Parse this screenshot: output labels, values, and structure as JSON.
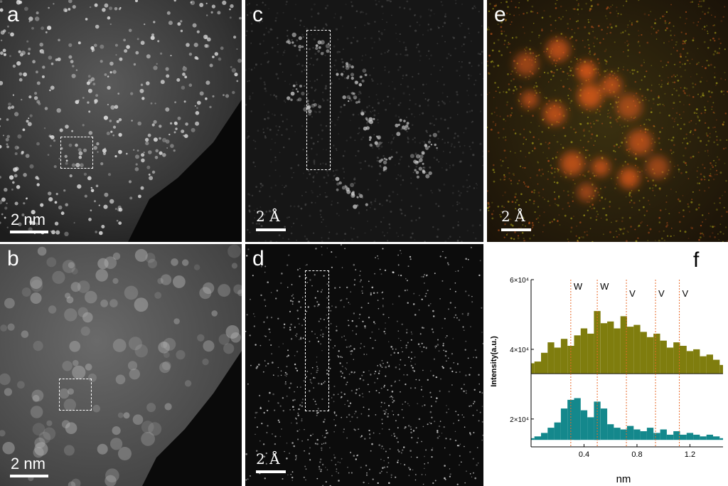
{
  "panels": {
    "a": {
      "label": "a",
      "scale": "2 nm"
    },
    "b": {
      "label": "b",
      "scale": "2 nm"
    },
    "c": {
      "label": "c",
      "scale": "2 Å"
    },
    "d": {
      "label": "d",
      "scale": "2 Å"
    },
    "e": {
      "label": "e",
      "scale": "2 Å"
    },
    "f": {
      "label": "f"
    }
  },
  "colors": {
    "series_top": "#7f7d0e",
    "series_bottom": "#14888c",
    "marker_line": "#e86a2a"
  },
  "chart_data": {
    "type": "area",
    "title": "",
    "xlabel": "nm",
    "ylabel": "Intensity(a.u.)",
    "xlim": [
      0.0,
      1.45
    ],
    "ylim": [
      12000,
      60000
    ],
    "x_ticks": [
      0.4,
      0.8,
      1.2
    ],
    "x_tick_labels": [
      "0.4",
      "0.8",
      "1.2"
    ],
    "y_ticks": [
      20000,
      40000,
      60000
    ],
    "y_tick_labels": [
      "2×10⁴",
      "4×10⁴",
      "6×10⁴"
    ],
    "grid": false,
    "annotations": [
      {
        "text": "W",
        "x": 0.3
      },
      {
        "text": "W",
        "x": 0.5
      },
      {
        "text": "V",
        "x": 0.72
      },
      {
        "text": "V",
        "x": 0.94
      },
      {
        "text": "V",
        "x": 1.12
      }
    ],
    "series": [
      {
        "baseline": 33000,
        "x": [
          0.0,
          0.05,
          0.1,
          0.15,
          0.2,
          0.25,
          0.3,
          0.35,
          0.4,
          0.45,
          0.5,
          0.55,
          0.6,
          0.65,
          0.7,
          0.75,
          0.8,
          0.85,
          0.9,
          0.95,
          1.0,
          1.05,
          1.1,
          1.15,
          1.2,
          1.25,
          1.3,
          1.35,
          1.4,
          1.45
        ],
        "values": [
          36000,
          36500,
          39000,
          42000,
          40500,
          43000,
          41000,
          44000,
          46000,
          44500,
          51000,
          47500,
          48000,
          46000,
          49500,
          46500,
          47000,
          45000,
          43500,
          44500,
          42500,
          40500,
          42000,
          41000,
          39500,
          40000,
          38000,
          38500,
          37000,
          35500
        ]
      },
      {
        "baseline": 14000,
        "x": [
          0.0,
          0.05,
          0.1,
          0.15,
          0.2,
          0.25,
          0.3,
          0.35,
          0.4,
          0.45,
          0.5,
          0.55,
          0.6,
          0.65,
          0.7,
          0.75,
          0.8,
          0.85,
          0.9,
          0.95,
          1.0,
          1.05,
          1.1,
          1.15,
          1.2,
          1.25,
          1.3,
          1.35,
          1.4,
          1.45
        ],
        "values": [
          14500,
          15000,
          16000,
          17500,
          19000,
          23000,
          25500,
          26000,
          22500,
          20500,
          25000,
          23000,
          18500,
          17500,
          17000,
          18000,
          17000,
          16500,
          17500,
          16000,
          17000,
          15500,
          16500,
          15500,
          16000,
          15500,
          15000,
          15500,
          15000,
          14500
        ]
      }
    ]
  }
}
